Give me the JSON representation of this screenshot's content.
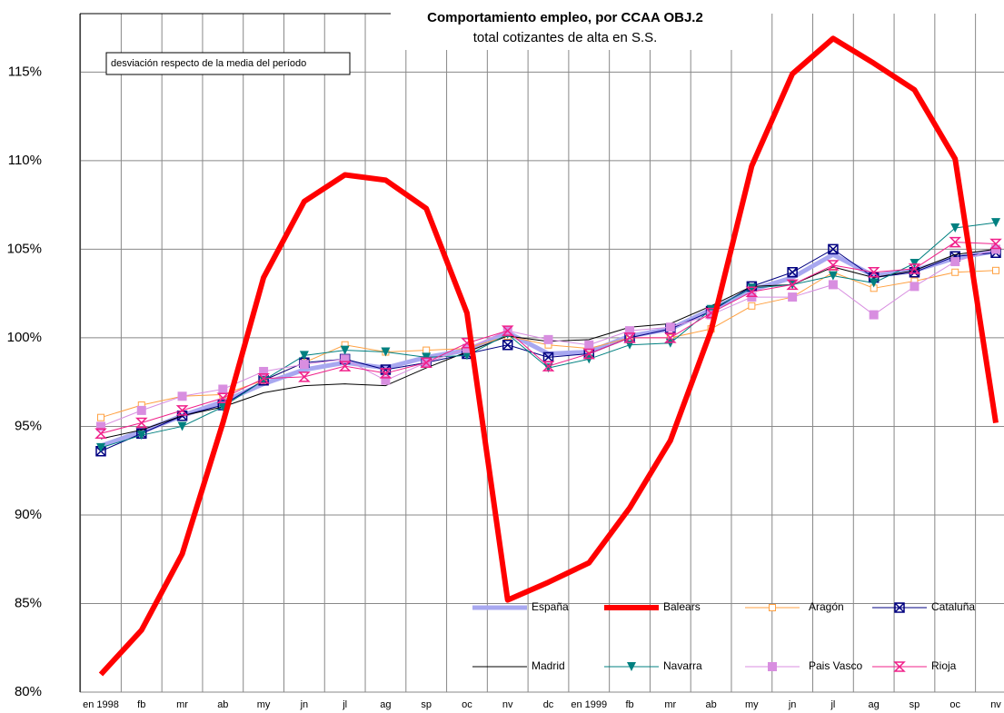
{
  "chart_data": {
    "type": "line",
    "title": "Comportamiento empleo, por CCAA OBJ.2",
    "subtitle": "total cotizantes de alta en S.S.",
    "annotation": "desviación respecto de la media del período",
    "categories": [
      "en 1998",
      "fb",
      "mr",
      "ab",
      "my",
      "jn",
      "jl",
      "ag",
      "sp",
      "oc",
      "nv",
      "dc",
      "en 1999",
      "fb",
      "mr",
      "ab",
      "my",
      "jn",
      "jl",
      "ag",
      "sp",
      "oc",
      "nv"
    ],
    "ylim": [
      80,
      118.3
    ],
    "yticks": [
      {
        "value": 80,
        "label": "80%"
      },
      {
        "value": 85,
        "label": "85%"
      },
      {
        "value": 90,
        "label": "90%"
      },
      {
        "value": 95,
        "label": "95%"
      },
      {
        "value": 100,
        "label": "100%"
      },
      {
        "value": 105,
        "label": "105%"
      },
      {
        "value": 110,
        "label": "110%"
      },
      {
        "value": 115,
        "label": "115%"
      }
    ],
    "grid": true,
    "legend": "lower right",
    "series": [
      {
        "name": "España",
        "color": "#a8a8f0",
        "line_width": 5,
        "marker": "none",
        "values": [
          93.9,
          94.7,
          95.6,
          96.4,
          97.4,
          98.2,
          98.6,
          98.3,
          98.9,
          99.3,
          100.3,
          99.1,
          99.2,
          100.1,
          100.5,
          101.6,
          102.7,
          103.4,
          104.7,
          103.5,
          103.8,
          104.5,
          104.9
        ]
      },
      {
        "name": "Balears",
        "color": "#ff0000",
        "line_width": 6,
        "marker": "none",
        "values": [
          81.0,
          83.5,
          87.8,
          95.2,
          103.4,
          107.7,
          109.2,
          108.9,
          107.3,
          101.4,
          85.2,
          86.2,
          87.3,
          90.4,
          94.2,
          100.4,
          109.7,
          114.9,
          116.9,
          115.5,
          114.0,
          110.1,
          95.2
        ]
      },
      {
        "name": "Aragón",
        "color": "#ffa040",
        "line_width": 1,
        "marker": "square-open",
        "values": [
          95.5,
          96.2,
          96.7,
          96.8,
          97.6,
          98.6,
          99.6,
          99.2,
          99.3,
          99.4,
          100.1,
          99.6,
          99.4,
          100.0,
          100.0,
          100.5,
          101.8,
          102.3,
          103.7,
          102.8,
          103.2,
          103.7,
          103.8
        ]
      },
      {
        "name": "Cataluña",
        "color": "#000080",
        "line_width": 1,
        "marker": "square-x",
        "values": [
          93.6,
          94.6,
          95.6,
          96.2,
          97.6,
          98.6,
          98.8,
          98.2,
          98.6,
          99.1,
          99.6,
          98.9,
          99.1,
          100.0,
          100.5,
          101.5,
          102.9,
          103.7,
          105.0,
          103.4,
          103.7,
          104.6,
          104.8
        ]
      },
      {
        "name": "Madrid",
        "color": "#000000",
        "line_width": 1,
        "marker": "none",
        "values": [
          94.3,
          94.8,
          95.6,
          96.1,
          96.9,
          97.3,
          97.4,
          97.3,
          98.3,
          99.2,
          100.1,
          99.8,
          99.9,
          100.6,
          100.8,
          101.8,
          102.9,
          103.0,
          104.0,
          103.4,
          103.8,
          104.7,
          105.0
        ]
      },
      {
        "name": "Navarra",
        "color": "#008080",
        "line_width": 1,
        "marker": "triangle-down",
        "values": [
          93.8,
          94.5,
          95.0,
          96.1,
          97.6,
          99.0,
          99.3,
          99.2,
          98.9,
          99.0,
          100.2,
          98.3,
          98.8,
          99.6,
          99.7,
          101.6,
          102.8,
          103.0,
          103.5,
          103.1,
          104.2,
          106.2,
          106.5
        ]
      },
      {
        "name": "Pais Vasco",
        "color": "#d88ee0",
        "line_width": 1,
        "marker": "square",
        "values": [
          95.0,
          95.9,
          96.7,
          97.1,
          98.1,
          98.5,
          98.8,
          97.6,
          98.6,
          99.4,
          100.4,
          99.9,
          99.6,
          100.4,
          100.6,
          101.3,
          102.3,
          102.3,
          103.0,
          101.3,
          102.9,
          104.3,
          105.0
        ]
      },
      {
        "name": "Rioja",
        "color": "#f0208a",
        "line_width": 1,
        "marker": "hourglass",
        "values": [
          94.6,
          95.2,
          95.9,
          96.6,
          97.7,
          97.8,
          98.4,
          98.0,
          98.6,
          99.7,
          100.4,
          98.4,
          99.1,
          100.0,
          100.0,
          101.4,
          102.6,
          103.0,
          104.1,
          103.7,
          103.9,
          105.4,
          105.3
        ]
      }
    ]
  }
}
